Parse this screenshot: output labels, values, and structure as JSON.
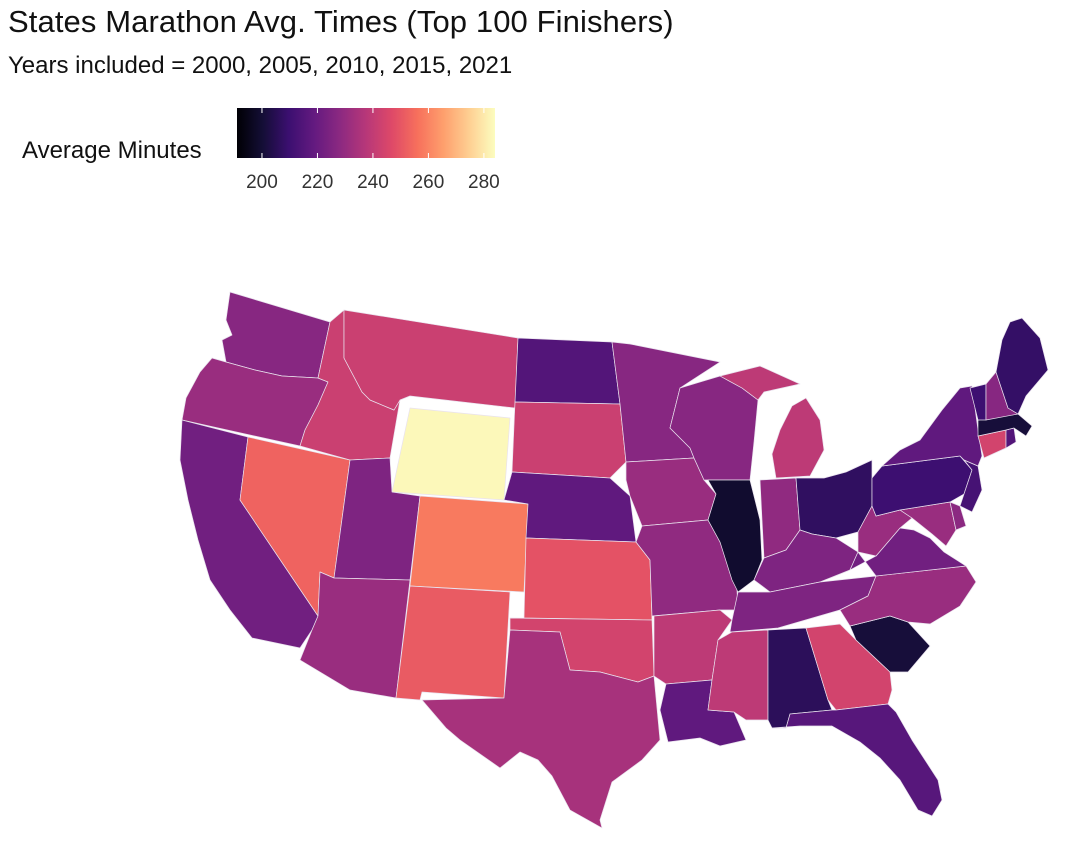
{
  "title": "States Marathon Avg. Times (Top 100 Finishers)",
  "subtitle": "Years included = 2000, 2005, 2010, 2015, 2021",
  "legend": {
    "title": "Average Minutes",
    "min": 191,
    "max": 284,
    "ticks": [
      "200",
      "220",
      "240",
      "260",
      "280"
    ],
    "tick_values": [
      200,
      220,
      240,
      260,
      280
    ]
  },
  "colormap": "magma",
  "colors": {
    "low": "#000004",
    "mid": "#b73779",
    "high": "#fcfdbf"
  },
  "chart_data": {
    "type": "heatmap",
    "subtype": "choropleth-us-states",
    "title": "States Marathon Avg. Times (Top 100 Finishers)",
    "subtitle": "Years included = 2000, 2005, 2010, 2015, 2021",
    "legend_title": "Average Minutes",
    "scale_range": [
      191,
      284
    ],
    "states": [
      {
        "abbr": "WA",
        "value": 227
      },
      {
        "abbr": "OR",
        "value": 231
      },
      {
        "abbr": "CA",
        "value": 222
      },
      {
        "abbr": "NV",
        "value": 253
      },
      {
        "abbr": "ID",
        "value": 242
      },
      {
        "abbr": "MT",
        "value": 242
      },
      {
        "abbr": "WY",
        "value": 283
      },
      {
        "abbr": "UT",
        "value": 225
      },
      {
        "abbr": "AZ",
        "value": 231
      },
      {
        "abbr": "CO",
        "value": 258
      },
      {
        "abbr": "NM",
        "value": 251
      },
      {
        "abbr": "ND",
        "value": 215
      },
      {
        "abbr": "SD",
        "value": 242
      },
      {
        "abbr": "NE",
        "value": 218
      },
      {
        "abbr": "KS",
        "value": 249
      },
      {
        "abbr": "OK",
        "value": 244
      },
      {
        "abbr": "TX",
        "value": 234
      },
      {
        "abbr": "MN",
        "value": 227
      },
      {
        "abbr": "IA",
        "value": 231
      },
      {
        "abbr": "MO",
        "value": 229
      },
      {
        "abbr": "AR",
        "value": 239
      },
      {
        "abbr": "LA",
        "value": 218
      },
      {
        "abbr": "WI",
        "value": 227
      },
      {
        "abbr": "IL",
        "value": 199
      },
      {
        "abbr": "MI",
        "value": 239
      },
      {
        "abbr": "IN",
        "value": 229
      },
      {
        "abbr": "OH",
        "value": 207
      },
      {
        "abbr": "KY",
        "value": 225
      },
      {
        "abbr": "TN",
        "value": 225
      },
      {
        "abbr": "MS",
        "value": 239
      },
      {
        "abbr": "AL",
        "value": 206
      },
      {
        "abbr": "GA",
        "value": 244
      },
      {
        "abbr": "FL",
        "value": 216
      },
      {
        "abbr": "SC",
        "value": 201
      },
      {
        "abbr": "NC",
        "value": 231
      },
      {
        "abbr": "VA",
        "value": 222
      },
      {
        "abbr": "WV",
        "value": 231
      },
      {
        "abbr": "MD",
        "value": 231
      },
      {
        "abbr": "DE",
        "value": 228
      },
      {
        "abbr": "PA",
        "value": 210
      },
      {
        "abbr": "NJ",
        "value": 212
      },
      {
        "abbr": "NY",
        "value": 218
      },
      {
        "abbr": "CT",
        "value": 244
      },
      {
        "abbr": "RI",
        "value": 215
      },
      {
        "abbr": "MA",
        "value": 201
      },
      {
        "abbr": "VT",
        "value": 210
      },
      {
        "abbr": "NH",
        "value": 227
      },
      {
        "abbr": "ME",
        "value": 208
      }
    ]
  }
}
